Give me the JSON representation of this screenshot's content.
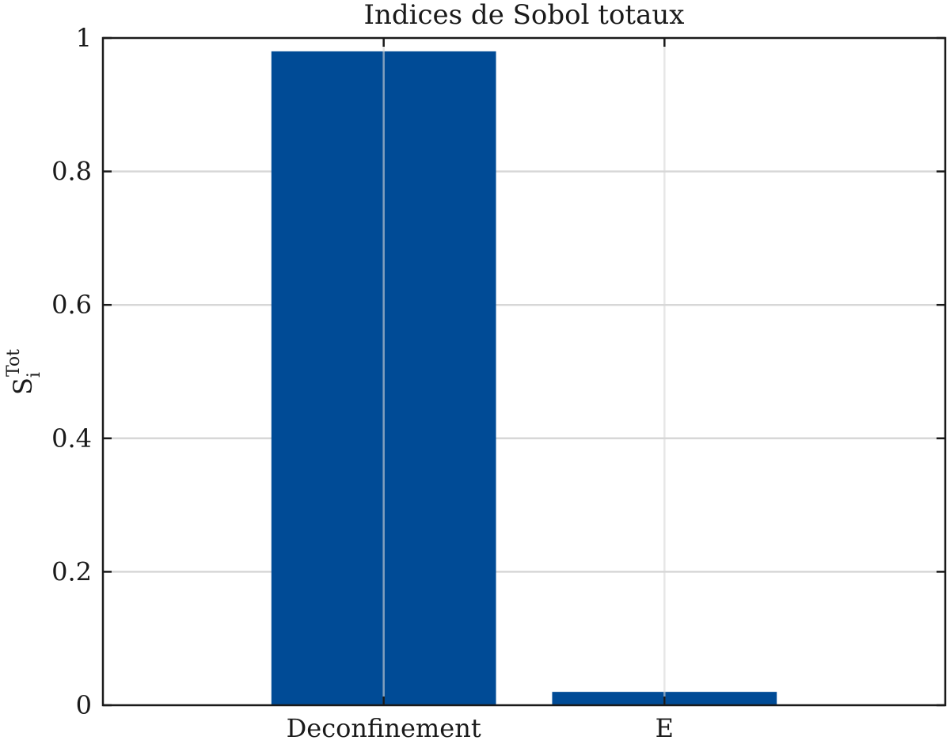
{
  "chart_data": {
    "type": "bar",
    "title": "Indices de Sobol totaux",
    "ylabel": {
      "base": "S",
      "subscript": "i",
      "superscript": "Tot"
    },
    "xlabel": "",
    "categories": [
      "Deconfinement",
      "E"
    ],
    "values": [
      0.98,
      0.02
    ],
    "ylim": [
      0,
      1
    ],
    "yticks": [
      0,
      0.2,
      0.4,
      0.6,
      0.8,
      1
    ],
    "ytick_labels": [
      "0",
      "0.2",
      "0.4",
      "0.6",
      "0.8",
      "1"
    ],
    "grid": true,
    "bar_color": "#004b96",
    "legend": "none"
  }
}
